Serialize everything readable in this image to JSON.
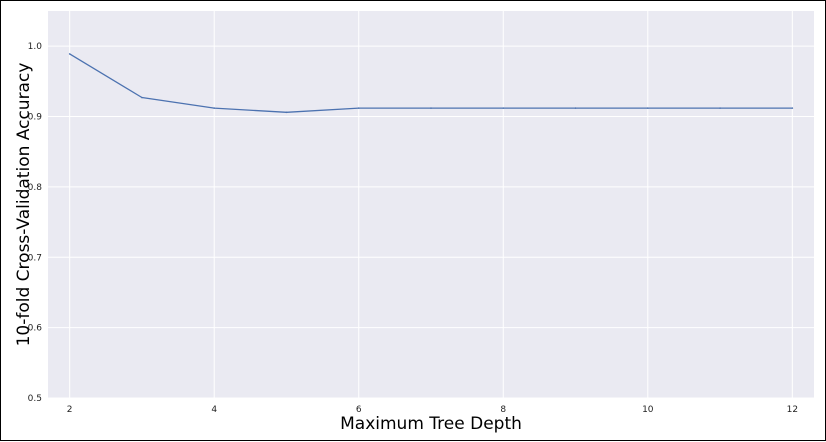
{
  "chart_data": {
    "type": "line",
    "title": "",
    "xlabel": "Maximum Tree Depth",
    "ylabel": "10-fold Cross-Validation Accuracy",
    "xlim": [
      1.7,
      12.3
    ],
    "ylim": [
      0.5,
      1.05
    ],
    "xticks": [
      2,
      4,
      6,
      8,
      10,
      12
    ],
    "yticks": [
      0.5,
      0.6,
      0.7,
      0.8,
      0.9,
      1.0
    ],
    "xtick_labels": [
      "2",
      "4",
      "6",
      "8",
      "10",
      "12"
    ],
    "ytick_labels": [
      "0.5",
      "0.6",
      "0.7",
      "0.8",
      "0.9",
      "1.0"
    ],
    "grid": true,
    "series": [
      {
        "x": [
          2,
          3,
          4,
          5,
          6,
          7,
          8,
          9,
          10,
          11,
          12
        ],
        "y": [
          0.989,
          0.927,
          0.912,
          0.906,
          0.912,
          0.912,
          0.912,
          0.912,
          0.912,
          0.912,
          0.912
        ],
        "color": "#4c72b0"
      }
    ],
    "colors": {
      "background": "#eaeaf2",
      "grid": "#ffffff",
      "line": "#4c72b0"
    }
  }
}
